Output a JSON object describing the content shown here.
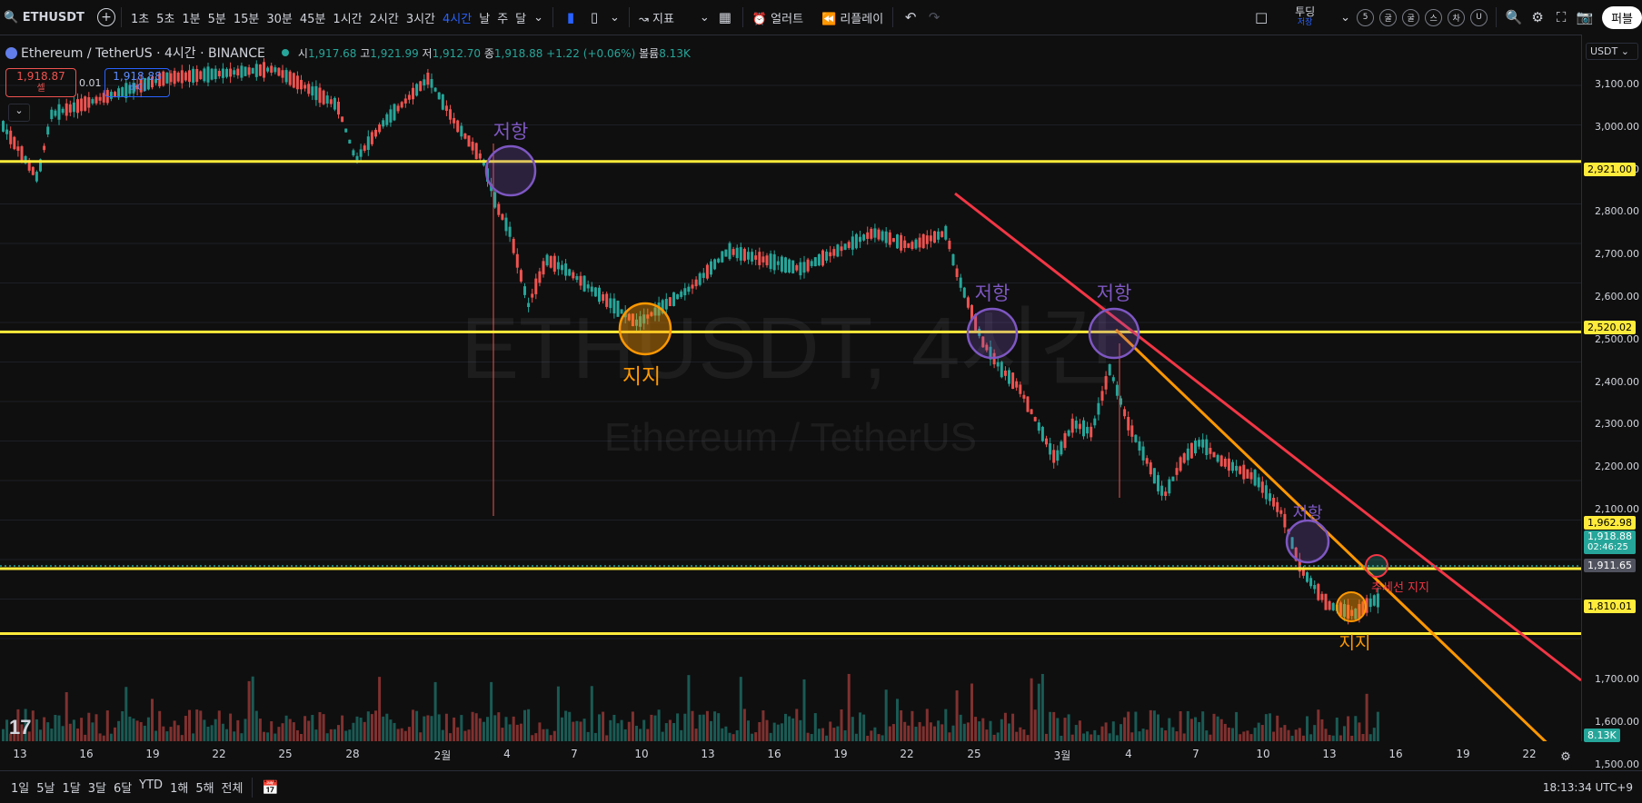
{
  "toolbar": {
    "symbol": "ETHUSDT",
    "intervals": [
      "1초",
      "5초",
      "1분",
      "5분",
      "15분",
      "30분",
      "45분",
      "1시간",
      "2시간",
      "3시간",
      "4시간",
      "날",
      "주",
      "달"
    ],
    "active_interval": "4시간",
    "indicators_label": "지표",
    "alert_label": "얼러트",
    "replay_label": "리플레이",
    "idea_label": "투딩",
    "idea_sub": "저장",
    "circle_buttons": [
      "5",
      "굴",
      "굴",
      "스",
      "차",
      "U"
    ],
    "publish_label": "퍼블"
  },
  "legend": {
    "title": "Ethereum / TetherUS · 4시간 · BINANCE",
    "o_label": "시",
    "o": "1,917.68",
    "h_label": "고",
    "h": "1,921.99",
    "l_label": "저",
    "l": "1,912.70",
    "c_label": "종",
    "c": "1,918.88",
    "change": "+1.22 (+0.06%)",
    "vol_label": "볼륨",
    "vol": "8.13K",
    "sell_price": "1,918.87",
    "sell_label": "셀",
    "spread": "0.01",
    "buy_price": "1,918.88",
    "buy_label": "바이"
  },
  "watermark": {
    "main": "ETHUSDT, 4시간",
    "sub": "Ethereum / TetherUS"
  },
  "axis": {
    "currency": "USDT",
    "ticks": [
      "3,100.00",
      "3,000.00",
      "2,900.00",
      "2,800.00",
      "2,700.00",
      "2,600.00",
      "2,500.00",
      "2,400.00",
      "2,300.00",
      "2,200.00",
      "2,100.00",
      "1,700.00",
      "1,600.00",
      "1,500.00"
    ],
    "tags": {
      "r1": "2,921.00",
      "r2": "2,520.02",
      "r3": "1,962.98",
      "last": "1,918.88",
      "countdown": "02:46:25",
      "cross": "1,911.65",
      "s1": "1,810.01",
      "vol": "8.13K"
    }
  },
  "annotations": {
    "resistance": "저항",
    "support": "지지",
    "trendline_support": "추세선 지지"
  },
  "time_axis": [
    "13",
    "16",
    "19",
    "22",
    "25",
    "28",
    "2월",
    "4",
    "7",
    "10",
    "13",
    "16",
    "19",
    "22",
    "25",
    "3월",
    "4",
    "7",
    "10",
    "13",
    "16",
    "19",
    "22"
  ],
  "bottom": {
    "ranges": [
      "1일",
      "5날",
      "1달",
      "3달",
      "6달",
      "YTD",
      "1해",
      "5해",
      "전체"
    ],
    "clock": "18:13:34 UTC+9"
  },
  "colors": {
    "up": "#26a69a",
    "down": "#ef5350",
    "hline": "#ffeb3b",
    "red_trend": "#f23645",
    "orange_trend": "#ff9800",
    "purple": "#7e57c2"
  },
  "chart_data": {
    "type": "candlestick",
    "ylim": [
      1480,
      3160
    ],
    "horizontal_levels": [
      2921.0,
      2520.02,
      1962.98,
      1810.01
    ],
    "last_price": 1918.88,
    "crosshair_price": 1911.65
  }
}
